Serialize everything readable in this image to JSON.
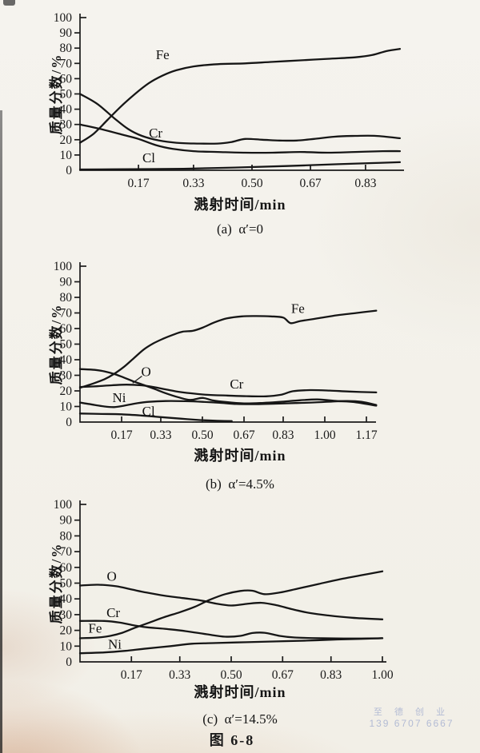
{
  "figure": {
    "caption": "图 6-8"
  },
  "watermark": {
    "line1": "至 德 创 业",
    "line2": "139 6707 6667"
  },
  "ink_color": "#1a1a1a",
  "chart_data": [
    {
      "type": "line",
      "id": "a",
      "caption": "(a)  α′=0",
      "xlabel": "溅射时间/min",
      "ylabel": "质量分数/%",
      "ylim": [
        0,
        100
      ],
      "ytick_step": 10,
      "grid": false,
      "legend": "inline-labels",
      "xticks": [
        {
          "v": 0.17,
          "t": "0.17"
        },
        {
          "v": 0.33,
          "t": "0.33"
        },
        {
          "v": 0.5,
          "t": "0.50"
        },
        {
          "v": 0.67,
          "t": "0.67"
        },
        {
          "v": 0.83,
          "t": "0.83"
        }
      ],
      "xmax": 0.94,
      "series": [
        {
          "name": "Fe",
          "label_at": [
            0.24,
            76
          ],
          "points": [
            [
              0,
              18
            ],
            [
              0.04,
              24
            ],
            [
              0.08,
              33
            ],
            [
              0.12,
              42
            ],
            [
              0.16,
              50
            ],
            [
              0.2,
              57
            ],
            [
              0.24,
              62
            ],
            [
              0.28,
              65.5
            ],
            [
              0.33,
              68
            ],
            [
              0.4,
              69.5
            ],
            [
              0.48,
              70
            ],
            [
              0.56,
              71
            ],
            [
              0.64,
              72
            ],
            [
              0.72,
              73
            ],
            [
              0.8,
              74
            ],
            [
              0.85,
              75.5
            ],
            [
              0.89,
              78
            ],
            [
              0.93,
              79.5
            ]
          ]
        },
        {
          "name": "Cr",
          "label_at": [
            0.22,
            24.5
          ],
          "points": [
            [
              0,
              50
            ],
            [
              0.05,
              43.5
            ],
            [
              0.1,
              34
            ],
            [
              0.14,
              27
            ],
            [
              0.18,
              22.5
            ],
            [
              0.23,
              19.5
            ],
            [
              0.28,
              18
            ],
            [
              0.34,
              17.5
            ],
            [
              0.4,
              17.5
            ],
            [
              0.44,
              18.5
            ],
            [
              0.48,
              20.5
            ],
            [
              0.53,
              20
            ],
            [
              0.58,
              19.5
            ],
            [
              0.63,
              19.5
            ],
            [
              0.68,
              20.5
            ],
            [
              0.74,
              22
            ],
            [
              0.8,
              22.5
            ],
            [
              0.86,
              22.5
            ],
            [
              0.93,
              21
            ]
          ]
        },
        {
          "name": "Cl",
          "label_at": [
            0.2,
            8.5
          ],
          "points": [
            [
              0,
              30
            ],
            [
              0.06,
              27
            ],
            [
              0.12,
              23.5
            ],
            [
              0.17,
              20.5
            ],
            [
              0.22,
              16.5
            ],
            [
              0.27,
              14
            ],
            [
              0.33,
              12.5
            ],
            [
              0.4,
              12
            ],
            [
              0.48,
              11.5
            ],
            [
              0.56,
              11.5
            ],
            [
              0.64,
              12
            ],
            [
              0.72,
              11.5
            ],
            [
              0.8,
              12
            ],
            [
              0.88,
              12.5
            ],
            [
              0.93,
              12.5
            ]
          ]
        },
        {
          "name": "",
          "points": [
            [
              0,
              0.5
            ],
            [
              0.15,
              0.7
            ],
            [
              0.3,
              1
            ],
            [
              0.45,
              1.8
            ],
            [
              0.6,
              2.8
            ],
            [
              0.75,
              4
            ],
            [
              0.85,
              4.7
            ],
            [
              0.93,
              5.3
            ]
          ]
        }
      ]
    },
    {
      "type": "line",
      "id": "b",
      "caption": "(b)  α′=4.5%",
      "xlabel": "溅射时间/min",
      "ylabel": "质量分数/%",
      "ylim": [
        0,
        100
      ],
      "ytick_step": 10,
      "grid": false,
      "legend": "inline-labels",
      "xticks": [
        {
          "v": 0.17,
          "t": "0.17"
        },
        {
          "v": 0.33,
          "t": "0.33"
        },
        {
          "v": 0.5,
          "t": "0.50"
        },
        {
          "v": 0.67,
          "t": "0.67"
        },
        {
          "v": 0.83,
          "t": "0.83"
        },
        {
          "v": 1.0,
          "t": "1.00"
        },
        {
          "v": 1.17,
          "t": "1.17"
        }
      ],
      "xmax": 1.22,
      "series": [
        {
          "name": "Fe",
          "label_at": [
            0.89,
            73
          ],
          "points": [
            [
              0,
              22
            ],
            [
              0.05,
              24.5
            ],
            [
              0.1,
              27.5
            ],
            [
              0.14,
              31
            ],
            [
              0.18,
              35.5
            ],
            [
              0.22,
              41
            ],
            [
              0.26,
              46.5
            ],
            [
              0.3,
              50.5
            ],
            [
              0.34,
              53.5
            ],
            [
              0.38,
              56
            ],
            [
              0.42,
              58
            ],
            [
              0.46,
              58.5
            ],
            [
              0.5,
              60.5
            ],
            [
              0.55,
              64
            ],
            [
              0.6,
              66.5
            ],
            [
              0.66,
              67.8
            ],
            [
              0.72,
              68
            ],
            [
              0.78,
              67.8
            ],
            [
              0.83,
              67
            ],
            [
              0.86,
              63.5
            ],
            [
              0.9,
              64.8
            ],
            [
              0.97,
              66.5
            ],
            [
              1.05,
              68.5
            ],
            [
              1.13,
              70
            ],
            [
              1.21,
              71.5
            ]
          ]
        },
        {
          "name": "O",
          "label_at": [
            0.27,
            32.5
          ],
          "leader": [
            [
              0.253,
              29.5
            ],
            [
              0.215,
              25
            ]
          ],
          "points": [
            [
              0,
              34
            ],
            [
              0.06,
              33.5
            ],
            [
              0.1,
              32.5
            ],
            [
              0.14,
              30.8
            ],
            [
              0.18,
              28.5
            ],
            [
              0.22,
              26
            ],
            [
              0.26,
              23.8
            ],
            [
              0.3,
              21.5
            ],
            [
              0.35,
              18.5
            ],
            [
              0.4,
              16
            ],
            [
              0.45,
              14.2
            ],
            [
              0.5,
              15.5
            ],
            [
              0.54,
              14
            ],
            [
              0.6,
              12.8
            ],
            [
              0.67,
              12
            ],
            [
              0.75,
              12.3
            ],
            [
              0.82,
              13
            ],
            [
              0.9,
              14
            ],
            [
              0.97,
              14.5
            ],
            [
              1.05,
              13.5
            ],
            [
              1.12,
              12.8
            ],
            [
              1.21,
              10.5
            ]
          ]
        },
        {
          "name": "Cr",
          "label_at": [
            0.64,
            24.5
          ],
          "points": [
            [
              0,
              22.5
            ],
            [
              0.07,
              23
            ],
            [
              0.13,
              23.6
            ],
            [
              0.19,
              24
            ],
            [
              0.25,
              23.6
            ],
            [
              0.3,
              22.5
            ],
            [
              0.35,
              21
            ],
            [
              0.4,
              19.5
            ],
            [
              0.45,
              18.5
            ],
            [
              0.52,
              17.5
            ],
            [
              0.6,
              17
            ],
            [
              0.68,
              16.6
            ],
            [
              0.76,
              16.5
            ],
            [
              0.82,
              17.5
            ],
            [
              0.87,
              19.8
            ],
            [
              0.94,
              20.5
            ],
            [
              1.02,
              20.2
            ],
            [
              1.1,
              19.6
            ],
            [
              1.21,
              19
            ]
          ]
        },
        {
          "name": "Ni",
          "label_at": [
            0.16,
            15.8
          ],
          "points": [
            [
              0,
              12.5
            ],
            [
              0.06,
              11
            ],
            [
              0.1,
              10
            ],
            [
              0.14,
              9.6
            ],
            [
              0.18,
              10.5
            ],
            [
              0.23,
              12
            ],
            [
              0.28,
              13
            ],
            [
              0.35,
              13.5
            ],
            [
              0.43,
              13.4
            ],
            [
              0.5,
              13
            ],
            [
              0.57,
              12.4
            ],
            [
              0.64,
              11.6
            ],
            [
              0.72,
              11.5
            ],
            [
              0.8,
              11.8
            ],
            [
              0.88,
              12.2
            ],
            [
              0.96,
              12.6
            ],
            [
              1.03,
              13.2
            ],
            [
              1.09,
              13.5
            ],
            [
              1.15,
              13
            ],
            [
              1.21,
              11
            ]
          ]
        },
        {
          "name": "Cl",
          "label_at": [
            0.28,
            7.3
          ],
          "points": [
            [
              0,
              5.5
            ],
            [
              0.09,
              5.2
            ],
            [
              0.17,
              5
            ],
            [
              0.25,
              4.2
            ],
            [
              0.33,
              3.2
            ],
            [
              0.41,
              2.2
            ],
            [
              0.49,
              1.3
            ],
            [
              0.56,
              0.8
            ],
            [
              0.62,
              0.6
            ]
          ]
        }
      ]
    },
    {
      "type": "line",
      "id": "c",
      "caption": "(c)  α′=14.5%",
      "xlabel": "溅射时间/min",
      "ylabel": "质量分数/%",
      "ylim": [
        0,
        100
      ],
      "ytick_step": 10,
      "grid": false,
      "legend": "inline-labels",
      "xticks": [
        {
          "v": 0.17,
          "t": "0.17"
        },
        {
          "v": 0.33,
          "t": "0.33"
        },
        {
          "v": 0.5,
          "t": "0.50"
        },
        {
          "v": 0.67,
          "t": "0.67"
        },
        {
          "v": 0.83,
          "t": "0.83"
        },
        {
          "v": 1.0,
          "t": "1.00"
        }
      ],
      "xmax": 1.01,
      "series": [
        {
          "name": "O",
          "label_at": [
            0.105,
            54.5
          ],
          "points": [
            [
              0,
              48.5
            ],
            [
              0.06,
              49
            ],
            [
              0.12,
              48
            ],
            [
              0.17,
              46
            ],
            [
              0.22,
              44
            ],
            [
              0.28,
              42
            ],
            [
              0.34,
              40.5
            ],
            [
              0.4,
              39
            ],
            [
              0.45,
              37
            ],
            [
              0.5,
              35.8
            ],
            [
              0.55,
              36.8
            ],
            [
              0.6,
              37.5
            ],
            [
              0.65,
              36
            ],
            [
              0.7,
              33.5
            ],
            [
              0.76,
              31
            ],
            [
              0.82,
              29.5
            ],
            [
              0.9,
              28
            ],
            [
              1.0,
              27
            ]
          ]
        },
        {
          "name": "Fe",
          "label_at": [
            0.05,
            21.5
          ],
          "points": [
            [
              0,
              15
            ],
            [
              0.06,
              15.5
            ],
            [
              0.1,
              16.5
            ],
            [
              0.14,
              18.5
            ],
            [
              0.18,
              21.5
            ],
            [
              0.23,
              25
            ],
            [
              0.28,
              28.5
            ],
            [
              0.33,
              31.5
            ],
            [
              0.38,
              35
            ],
            [
              0.43,
              39.5
            ],
            [
              0.48,
              43
            ],
            [
              0.53,
              45
            ],
            [
              0.57,
              45.2
            ],
            [
              0.61,
              43
            ],
            [
              0.66,
              44
            ],
            [
              0.72,
              46.5
            ],
            [
              0.79,
              49.5
            ],
            [
              0.86,
              52.5
            ],
            [
              0.93,
              55
            ],
            [
              1.0,
              57.5
            ]
          ]
        },
        {
          "name": "Cr",
          "label_at": [
            0.11,
            31.5
          ],
          "points": [
            [
              0,
              26
            ],
            [
              0.08,
              26
            ],
            [
              0.13,
              25
            ],
            [
              0.17,
              23.5
            ],
            [
              0.22,
              22
            ],
            [
              0.28,
              21
            ],
            [
              0.35,
              19.5
            ],
            [
              0.42,
              17.5
            ],
            [
              0.48,
              16
            ],
            [
              0.53,
              16.5
            ],
            [
              0.57,
              18.3
            ],
            [
              0.61,
              18.5
            ],
            [
              0.66,
              16.5
            ],
            [
              0.71,
              15.5
            ],
            [
              0.8,
              15
            ],
            [
              0.9,
              14.8
            ],
            [
              1.0,
              15
            ]
          ]
        },
        {
          "name": "Ni",
          "label_at": [
            0.115,
            11.3
          ],
          "points": [
            [
              0,
              5.5
            ],
            [
              0.08,
              6
            ],
            [
              0.15,
              7
            ],
            [
              0.22,
              8.5
            ],
            [
              0.3,
              10
            ],
            [
              0.37,
              11.5
            ],
            [
              0.45,
              12
            ],
            [
              0.55,
              12.5
            ],
            [
              0.65,
              13
            ],
            [
              0.75,
              13.5
            ],
            [
              0.85,
              14.2
            ],
            [
              0.93,
              14.6
            ],
            [
              1.0,
              15
            ]
          ]
        }
      ]
    }
  ]
}
